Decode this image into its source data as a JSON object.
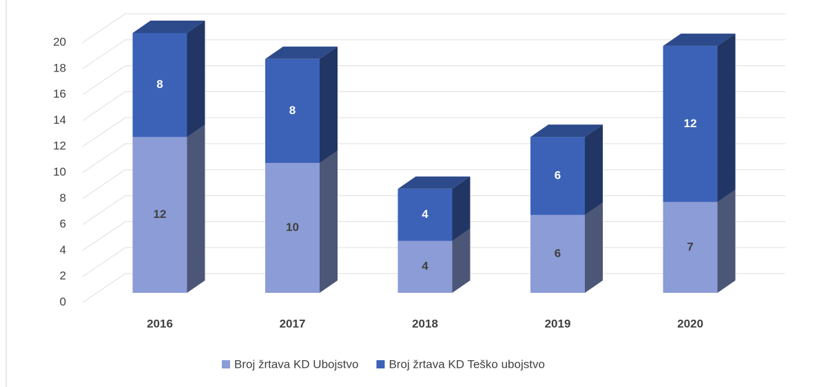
{
  "chart_data": {
    "type": "bar3d_stacked",
    "categories": [
      "2016",
      "2017",
      "2018",
      "2019",
      "2020"
    ],
    "series": [
      {
        "name": "Broj žrtava KD Ubojstvo",
        "color": "#8b9cd6",
        "values": [
          12,
          10,
          4,
          6,
          7
        ]
      },
      {
        "name": "Broj žrtava KD Teško ubojstvo",
        "color": "#3c62b8",
        "values": [
          8,
          8,
          4,
          6,
          12
        ]
      }
    ],
    "ylim": [
      0,
      20
    ],
    "yticks": [
      0,
      2,
      4,
      6,
      8,
      10,
      12,
      14,
      16,
      18,
      20
    ],
    "grid": true,
    "legend": "bottom"
  }
}
